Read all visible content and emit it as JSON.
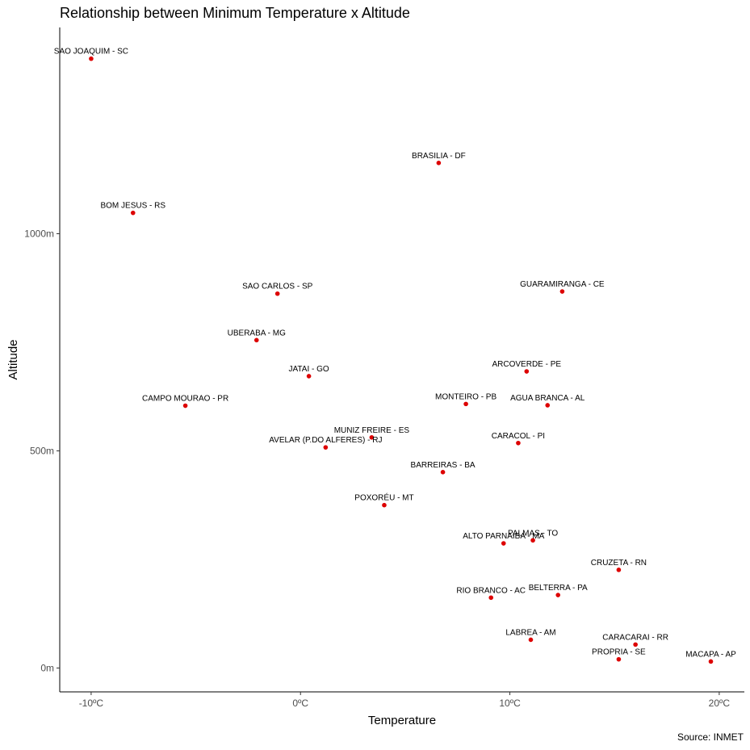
{
  "chart_data": {
    "type": "scatter",
    "title": "Relationship between Minimum Temperature x Altitude",
    "caption": "Source: INMET",
    "xlabel": "Temperature",
    "ylabel": "Altitude",
    "xlim": [
      -11.5,
      21.2
    ],
    "ylim": [
      -55,
      1475
    ],
    "x_ticks": [
      {
        "value": -10,
        "label": "-10ºC"
      },
      {
        "value": 0,
        "label": "0ºC"
      },
      {
        "value": 10,
        "label": "10ºC"
      },
      {
        "value": 20,
        "label": "20ºC"
      }
    ],
    "y_ticks": [
      {
        "value": 0,
        "label": "0m"
      },
      {
        "value": 500,
        "label": "500m"
      },
      {
        "value": 1000,
        "label": "1000m"
      }
    ],
    "grid": false,
    "point_color": "#dd0000",
    "points": [
      {
        "label": "SAO JOAQUIM - SC",
        "x": -10.0,
        "y": 1403
      },
      {
        "label": "BRASILIA - DF",
        "x": 6.6,
        "y": 1163
      },
      {
        "label": "BOM JESUS - RS",
        "x": -8.0,
        "y": 1048
      },
      {
        "label": "SAO CARLOS - SP",
        "x": -1.1,
        "y": 862
      },
      {
        "label": "GUARAMIRANGA - CE",
        "x": 12.5,
        "y": 867
      },
      {
        "label": "UBERABA - MG",
        "x": -2.1,
        "y": 755
      },
      {
        "label": "JATAI - GO",
        "x": 0.4,
        "y": 672
      },
      {
        "label": "ARCOVERDE - PE",
        "x": 10.8,
        "y": 683
      },
      {
        "label": "CAMPO MOURAO - PR",
        "x": -5.5,
        "y": 604
      },
      {
        "label": "MONTEIRO - PB",
        "x": 7.9,
        "y": 608
      },
      {
        "label": "AGUA BRANCA - AL",
        "x": 11.8,
        "y": 605
      },
      {
        "label": "MUNIZ FREIRE - ES",
        "x": 3.4,
        "y": 531
      },
      {
        "label": "AVELAR (P.DO ALFERES) - RJ",
        "x": 1.2,
        "y": 508
      },
      {
        "label": "CARACOL - PI",
        "x": 10.4,
        "y": 518
      },
      {
        "label": "BARREIRAS - BA",
        "x": 6.8,
        "y": 451
      },
      {
        "label": "POXORÉU - MT",
        "x": 4.0,
        "y": 375
      },
      {
        "label": "PALMAS - TO",
        "x": 11.1,
        "y": 294
      },
      {
        "label": "ALTO PARNAIBA - MA",
        "x": 9.7,
        "y": 287
      },
      {
        "label": "CRUZETA - RN",
        "x": 15.2,
        "y": 226
      },
      {
        "label": "BELTERRA - PA",
        "x": 12.3,
        "y": 168
      },
      {
        "label": "RIO BRANCO - AC",
        "x": 9.1,
        "y": 162
      },
      {
        "label": "LABREA - AM",
        "x": 11.0,
        "y": 65
      },
      {
        "label": "CARACARAI - RR",
        "x": 16.0,
        "y": 54
      },
      {
        "label": "PROPRIA - SE",
        "x": 15.2,
        "y": 20
      },
      {
        "label": "MACAPA - AP",
        "x": 19.6,
        "y": 15
      }
    ]
  }
}
